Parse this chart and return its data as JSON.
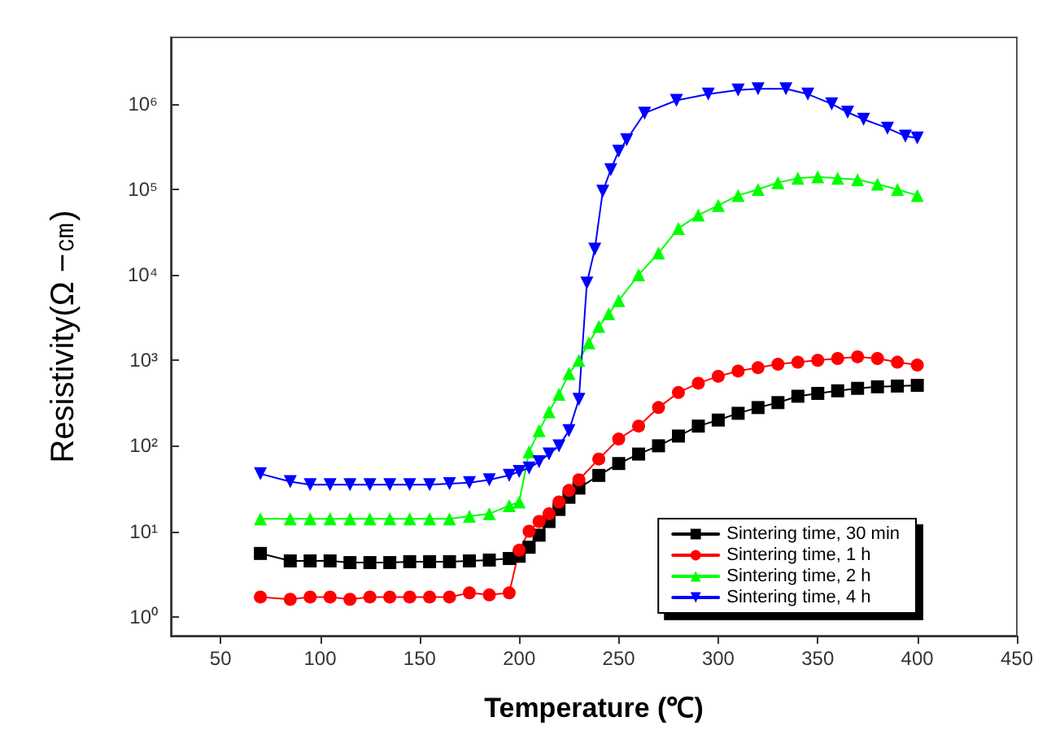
{
  "chart_data": {
    "type": "line",
    "xlabel": "Temperature (℃)",
    "ylabel": "Resistivity(Ω −㎝)",
    "xlim": [
      25,
      450
    ],
    "xticks": [
      50,
      100,
      150,
      200,
      250,
      300,
      350,
      400,
      450
    ],
    "ylim": [
      0.6,
      6000000
    ],
    "log": "y",
    "yticks": [
      {
        "value": 1,
        "label": "10⁰"
      },
      {
        "value": 10,
        "label": "10¹"
      },
      {
        "value": 100,
        "label": "10²"
      },
      {
        "value": 1000,
        "label": "10³"
      },
      {
        "value": 10000,
        "label": "10⁴"
      },
      {
        "value": 100000,
        "label": "10⁵"
      },
      {
        "value": 1000000,
        "label": "10⁶"
      }
    ],
    "grid": false,
    "legend": "bottom right",
    "line_style": "solid",
    "series": [
      {
        "name": "Sintering time, 30 min",
        "color": "#000000",
        "marker": "square",
        "x": [
          70,
          85,
          95,
          105,
          115,
          125,
          135,
          145,
          155,
          165,
          175,
          185,
          195,
          200,
          205,
          210,
          215,
          220,
          225,
          230,
          240,
          250,
          260,
          270,
          280,
          290,
          300,
          310,
          320,
          330,
          340,
          350,
          360,
          370,
          380,
          390,
          400
        ],
        "values": [
          5.5,
          4.5,
          4.5,
          4.5,
          4.3,
          4.3,
          4.3,
          4.4,
          4.4,
          4.4,
          4.5,
          4.6,
          4.8,
          5.1,
          6.5,
          9,
          13,
          18,
          25,
          32,
          45,
          62,
          80,
          100,
          130,
          170,
          200,
          240,
          280,
          320,
          380,
          410,
          440,
          470,
          490,
          500,
          510
        ]
      },
      {
        "name": "Sintering time, 1 h",
        "color": "#ff0000",
        "marker": "circle",
        "x": [
          70,
          85,
          95,
          105,
          115,
          125,
          135,
          145,
          155,
          165,
          175,
          185,
          195,
          200,
          205,
          210,
          215,
          220,
          225,
          230,
          240,
          250,
          260,
          270,
          280,
          290,
          300,
          310,
          320,
          330,
          340,
          350,
          360,
          370,
          380,
          390,
          400
        ],
        "values": [
          1.7,
          1.6,
          1.7,
          1.7,
          1.6,
          1.7,
          1.7,
          1.7,
          1.7,
          1.7,
          1.9,
          1.8,
          1.9,
          6,
          10,
          13,
          16,
          22,
          30,
          40,
          70,
          120,
          170,
          280,
          420,
          540,
          650,
          750,
          820,
          900,
          950,
          1000,
          1050,
          1100,
          1050,
          950,
          880
        ]
      },
      {
        "name": "Sintering time, 2 h",
        "color": "#00ff00",
        "marker": "triangle",
        "x": [
          70,
          85,
          95,
          105,
          115,
          125,
          135,
          145,
          155,
          165,
          175,
          185,
          195,
          200,
          205,
          210,
          215,
          220,
          225,
          230,
          235,
          240,
          245,
          250,
          260,
          270,
          280,
          290,
          300,
          310,
          320,
          330,
          340,
          350,
          360,
          370,
          380,
          390,
          400
        ],
        "values": [
          14,
          14,
          14,
          14,
          14,
          14,
          14,
          14,
          14,
          14,
          15,
          16,
          20,
          22,
          85,
          150,
          250,
          400,
          700,
          1000,
          1600,
          2500,
          3500,
          5000,
          10000,
          18000,
          35000,
          50000,
          65000,
          85000,
          100000,
          120000,
          135000,
          140000,
          135000,
          130000,
          115000,
          100000,
          85000
        ]
      },
      {
        "name": "Sintering time, 4 h",
        "color": "#0000ff",
        "marker": "triangle-down",
        "x": [
          70,
          85,
          95,
          105,
          115,
          125,
          135,
          145,
          155,
          165,
          175,
          185,
          195,
          200,
          205,
          210,
          215,
          220,
          225,
          230,
          234,
          238,
          242,
          246,
          250,
          254,
          263,
          279,
          295,
          310,
          320,
          334,
          345,
          357,
          365,
          373,
          385,
          394,
          400
        ],
        "values": [
          47,
          38,
          35,
          35,
          35,
          35,
          35,
          35,
          35,
          36,
          37,
          40,
          45,
          50,
          55,
          65,
          80,
          100,
          150,
          350,
          8000,
          20000,
          95000,
          170000,
          280000,
          380000,
          780000,
          1100000,
          1300000,
          1450000,
          1500000,
          1500000,
          1300000,
          1000000,
          800000,
          660000,
          520000,
          420000,
          400000
        ]
      }
    ]
  }
}
